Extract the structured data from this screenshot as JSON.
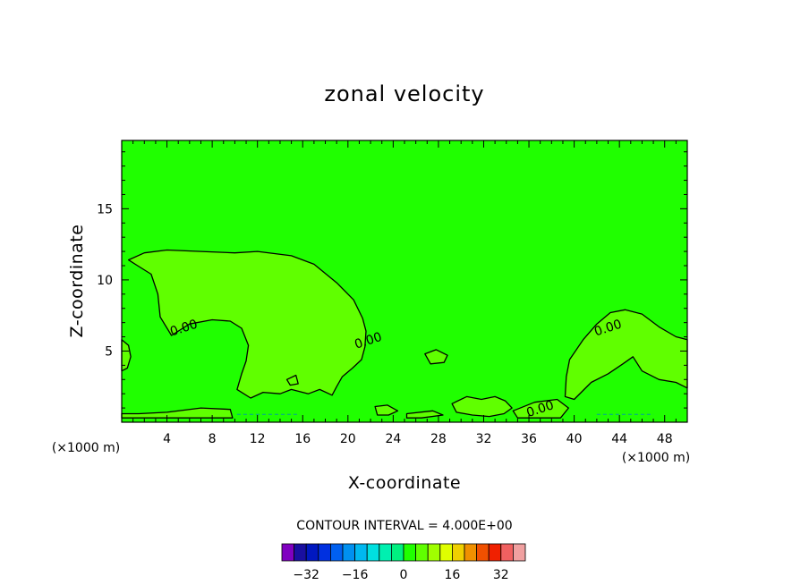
{
  "chart_data": {
    "type": "contour",
    "title": "zonal velocity",
    "xlabel": "X-coordinate",
    "ylabel": "Z-coordinate",
    "x_unit_left": "(×1000 m)",
    "x_unit_right": "(×1000 m)",
    "xlim": [
      0,
      50
    ],
    "ylim": [
      0,
      19.8
    ],
    "xticks": [
      "4",
      "8",
      "12",
      "16",
      "20",
      "24",
      "28",
      "32",
      "36",
      "40",
      "44",
      "48"
    ],
    "xtick_values": [
      4,
      8,
      12,
      16,
      20,
      24,
      28,
      32,
      36,
      40,
      44,
      48
    ],
    "yticks": [
      "5",
      "10",
      "15"
    ],
    "ytick_values": [
      5,
      10,
      15
    ],
    "contour_interval_text": "CONTOUR INTERVAL = 4.000E+00",
    "contour_labels": [
      {
        "text": "0.00",
        "x": 5.5,
        "z": 6.6
      },
      {
        "text": "0.00",
        "x": 21.8,
        "z": 5.7
      },
      {
        "text": "0.00",
        "x": 43.0,
        "z": 6.6
      },
      {
        "text": "0.00",
        "x": 37.0,
        "z": 0.9
      }
    ],
    "background_level": 0,
    "positive_region_level": 4,
    "positive_regions": [
      [
        [
          0.6,
          11.4
        ],
        [
          2,
          11.9
        ],
        [
          4,
          12.1
        ],
        [
          7,
          12.0
        ],
        [
          10,
          11.9
        ],
        [
          12,
          12.0
        ],
        [
          15,
          11.7
        ],
        [
          17,
          11.1
        ],
        [
          19,
          9.8
        ],
        [
          20.5,
          8.6
        ],
        [
          21.3,
          7.3
        ],
        [
          21.6,
          6.4
        ],
        [
          21.5,
          5.3
        ],
        [
          21.2,
          4.4
        ],
        [
          20.4,
          3.8
        ],
        [
          19.5,
          3.2
        ],
        [
          19,
          2.5
        ],
        [
          18.6,
          1.9
        ],
        [
          17.5,
          2.3
        ],
        [
          16.5,
          2.0
        ],
        [
          15,
          2.3
        ],
        [
          14,
          2.0
        ],
        [
          12.5,
          2.1
        ],
        [
          11.4,
          1.7
        ],
        [
          10.2,
          2.3
        ],
        [
          10.6,
          3.4
        ],
        [
          11.0,
          4.3
        ],
        [
          11.2,
          5.4
        ],
        [
          10.6,
          6.6
        ],
        [
          9.6,
          7.1
        ],
        [
          8.0,
          7.2
        ],
        [
          6.0,
          6.9
        ],
        [
          4.4,
          6.1
        ],
        [
          3.4,
          7.4
        ],
        [
          3.2,
          9.0
        ],
        [
          2.6,
          10.4
        ],
        [
          1.4,
          11.0
        ]
      ],
      [
        [
          39.6,
          4.4
        ],
        [
          40.8,
          5.8
        ],
        [
          42.0,
          6.9
        ],
        [
          43.2,
          7.7
        ],
        [
          44.5,
          7.9
        ],
        [
          46,
          7.6
        ],
        [
          47.5,
          6.7
        ],
        [
          49,
          6.0
        ],
        [
          50,
          5.8
        ],
        [
          50,
          2.4
        ],
        [
          49,
          2.8
        ],
        [
          47.5,
          3.0
        ],
        [
          46,
          3.6
        ],
        [
          45.2,
          4.6
        ],
        [
          44.3,
          4.1
        ],
        [
          43,
          3.4
        ],
        [
          41.5,
          2.8
        ],
        [
          40,
          1.6
        ],
        [
          39.2,
          1.8
        ],
        [
          39.3,
          3.2
        ]
      ],
      [
        [
          0,
          5.8
        ],
        [
          0.6,
          5.4
        ],
        [
          0.8,
          4.6
        ],
        [
          0.5,
          3.8
        ],
        [
          0,
          3.6
        ]
      ],
      [
        [
          26.8,
          4.8
        ],
        [
          27.8,
          5.1
        ],
        [
          28.8,
          4.7
        ],
        [
          28.5,
          4.2
        ],
        [
          27.3,
          4.1
        ]
      ],
      [
        [
          14.6,
          3.0
        ],
        [
          15.4,
          3.3
        ],
        [
          15.6,
          2.7
        ],
        [
          14.9,
          2.6
        ]
      ],
      [
        [
          29.2,
          1.3
        ],
        [
          30.5,
          1.8
        ],
        [
          31.8,
          1.6
        ],
        [
          33,
          1.8
        ],
        [
          33.9,
          1.5
        ],
        [
          34.5,
          1.0
        ],
        [
          33.8,
          0.6
        ],
        [
          32.5,
          0.4
        ],
        [
          31,
          0.5
        ],
        [
          29.6,
          0.7
        ]
      ],
      [
        [
          0,
          0.6
        ],
        [
          1.5,
          0.6
        ],
        [
          4,
          0.7
        ],
        [
          7,
          1.0
        ],
        [
          9.6,
          0.9
        ],
        [
          9.8,
          0.3
        ],
        [
          0,
          0.3
        ]
      ],
      [
        [
          22.4,
          1.1
        ],
        [
          23.5,
          1.2
        ],
        [
          24.4,
          0.8
        ],
        [
          23.6,
          0.5
        ],
        [
          22.6,
          0.5
        ]
      ],
      [
        [
          34.6,
          0.8
        ],
        [
          36.5,
          1.4
        ],
        [
          38.5,
          1.6
        ],
        [
          39.5,
          1.0
        ],
        [
          38.8,
          0.3
        ],
        [
          35,
          0.3
        ]
      ],
      [
        [
          25.2,
          0.6
        ],
        [
          27.5,
          0.8
        ],
        [
          28.4,
          0.5
        ],
        [
          26.5,
          0.3
        ],
        [
          25.2,
          0.3
        ]
      ]
    ],
    "colorbar": {
      "levels": [
        -36,
        -32,
        -28,
        -24,
        -20,
        -16,
        -12,
        -8,
        -4,
        0,
        4,
        8,
        12,
        16,
        20,
        24,
        28,
        32,
        36
      ],
      "tick_labels": [
        "−32",
        "−16",
        "0",
        "16",
        "32"
      ],
      "tick_values": [
        -32,
        -16,
        0,
        16,
        32
      ],
      "colors": [
        "#8000c0",
        "#1a0fa0",
        "#0018c0",
        "#0030e0",
        "#0060f0",
        "#0090f0",
        "#00b8f0",
        "#00e0e0",
        "#00f0b0",
        "#00f080",
        "#20ff00",
        "#60ff00",
        "#a0ff00",
        "#e0ff00",
        "#f0d000",
        "#f09000",
        "#f05000",
        "#f02000",
        "#f06060",
        "#f0a0a0"
      ]
    }
  }
}
